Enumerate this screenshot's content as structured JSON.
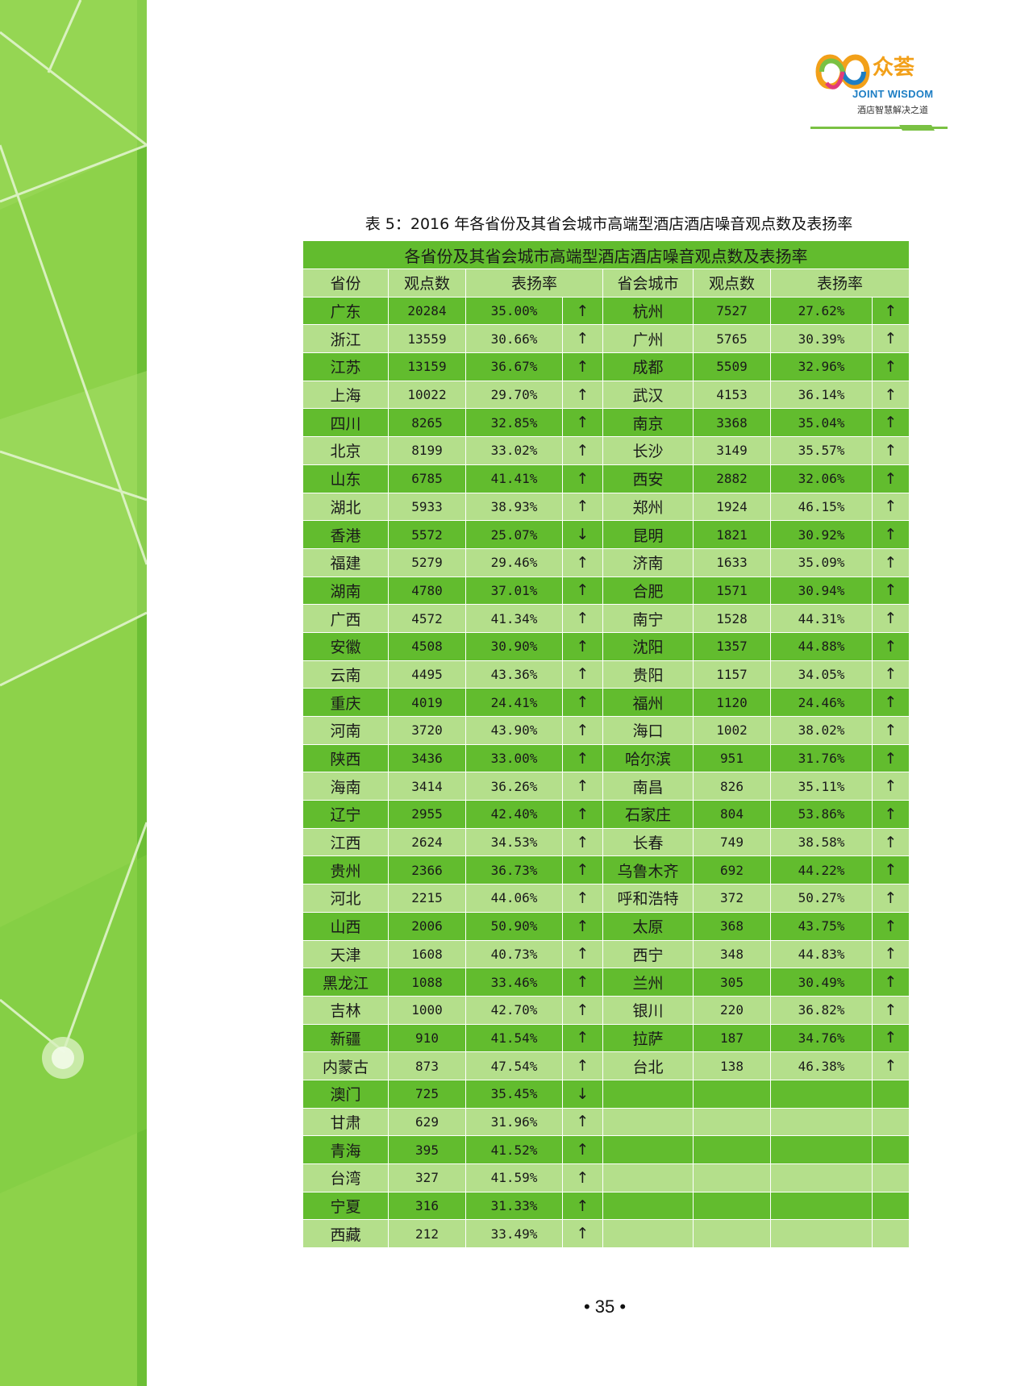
{
  "logo": {
    "brand_cn": "众荟",
    "brand_en": "JOINT WISDOM",
    "tagline": "酒店智慧解决之道"
  },
  "table": {
    "caption": "表 5：2016 年各省份及其省会城市高端型酒店酒店噪音观点数及表扬率",
    "title": "各省份及其省会城市高端型酒店酒店噪音观点数及表扬率",
    "headers": {
      "province": "省份",
      "province_count": "观点数",
      "province_rate": "表扬率",
      "city": "省会城市",
      "city_count": "观点数",
      "city_rate": "表扬率"
    },
    "rows": [
      {
        "province": "广东",
        "p_count": "20284",
        "p_rate": "35.00%",
        "p_arrow": "↑",
        "city": "杭州",
        "c_count": "7527",
        "c_rate": "27.62%",
        "c_arrow": "↑"
      },
      {
        "province": "浙江",
        "p_count": "13559",
        "p_rate": "30.66%",
        "p_arrow": "↑",
        "city": "广州",
        "c_count": "5765",
        "c_rate": "30.39%",
        "c_arrow": "↑"
      },
      {
        "province": "江苏",
        "p_count": "13159",
        "p_rate": "36.67%",
        "p_arrow": "↑",
        "city": "成都",
        "c_count": "5509",
        "c_rate": "32.96%",
        "c_arrow": "↑"
      },
      {
        "province": "上海",
        "p_count": "10022",
        "p_rate": "29.70%",
        "p_arrow": "↑",
        "city": "武汉",
        "c_count": "4153",
        "c_rate": "36.14%",
        "c_arrow": "↑"
      },
      {
        "province": "四川",
        "p_count": "8265",
        "p_rate": "32.85%",
        "p_arrow": "↑",
        "city": "南京",
        "c_count": "3368",
        "c_rate": "35.04%",
        "c_arrow": "↑"
      },
      {
        "province": "北京",
        "p_count": "8199",
        "p_rate": "33.02%",
        "p_arrow": "↑",
        "city": "长沙",
        "c_count": "3149",
        "c_rate": "35.57%",
        "c_arrow": "↑"
      },
      {
        "province": "山东",
        "p_count": "6785",
        "p_rate": "41.41%",
        "p_arrow": "↑",
        "city": "西安",
        "c_count": "2882",
        "c_rate": "32.06%",
        "c_arrow": "↑"
      },
      {
        "province": "湖北",
        "p_count": "5933",
        "p_rate": "38.93%",
        "p_arrow": "↑",
        "city": "郑州",
        "c_count": "1924",
        "c_rate": "46.15%",
        "c_arrow": "↑"
      },
      {
        "province": "香港",
        "p_count": "5572",
        "p_rate": "25.07%",
        "p_arrow": "↓",
        "city": "昆明",
        "c_count": "1821",
        "c_rate": "30.92%",
        "c_arrow": "↑"
      },
      {
        "province": "福建",
        "p_count": "5279",
        "p_rate": "29.46%",
        "p_arrow": "↑",
        "city": "济南",
        "c_count": "1633",
        "c_rate": "35.09%",
        "c_arrow": "↑"
      },
      {
        "province": "湖南",
        "p_count": "4780",
        "p_rate": "37.01%",
        "p_arrow": "↑",
        "city": "合肥",
        "c_count": "1571",
        "c_rate": "30.94%",
        "c_arrow": "↑"
      },
      {
        "province": "广西",
        "p_count": "4572",
        "p_rate": "41.34%",
        "p_arrow": "↑",
        "city": "南宁",
        "c_count": "1528",
        "c_rate": "44.31%",
        "c_arrow": "↑"
      },
      {
        "province": "安徽",
        "p_count": "4508",
        "p_rate": "30.90%",
        "p_arrow": "↑",
        "city": "沈阳",
        "c_count": "1357",
        "c_rate": "44.88%",
        "c_arrow": "↑"
      },
      {
        "province": "云南",
        "p_count": "4495",
        "p_rate": "43.36%",
        "p_arrow": "↑",
        "city": "贵阳",
        "c_count": "1157",
        "c_rate": "34.05%",
        "c_arrow": "↑"
      },
      {
        "province": "重庆",
        "p_count": "4019",
        "p_rate": "24.41%",
        "p_arrow": "↑",
        "city": "福州",
        "c_count": "1120",
        "c_rate": "24.46%",
        "c_arrow": "↑"
      },
      {
        "province": "河南",
        "p_count": "3720",
        "p_rate": "43.90%",
        "p_arrow": "↑",
        "city": "海口",
        "c_count": "1002",
        "c_rate": "38.02%",
        "c_arrow": "↑"
      },
      {
        "province": "陕西",
        "p_count": "3436",
        "p_rate": "33.00%",
        "p_arrow": "↑",
        "city": "哈尔滨",
        "c_count": "951",
        "c_rate": "31.76%",
        "c_arrow": "↑"
      },
      {
        "province": "海南",
        "p_count": "3414",
        "p_rate": "36.26%",
        "p_arrow": "↑",
        "city": "南昌",
        "c_count": "826",
        "c_rate": "35.11%",
        "c_arrow": "↑"
      },
      {
        "province": "辽宁",
        "p_count": "2955",
        "p_rate": "42.40%",
        "p_arrow": "↑",
        "city": "石家庄",
        "c_count": "804",
        "c_rate": "53.86%",
        "c_arrow": "↑"
      },
      {
        "province": "江西",
        "p_count": "2624",
        "p_rate": "34.53%",
        "p_arrow": "↑",
        "city": "长春",
        "c_count": "749",
        "c_rate": "38.58%",
        "c_arrow": "↑"
      },
      {
        "province": "贵州",
        "p_count": "2366",
        "p_rate": "36.73%",
        "p_arrow": "↑",
        "city": "乌鲁木齐",
        "c_count": "692",
        "c_rate": "44.22%",
        "c_arrow": "↑"
      },
      {
        "province": "河北",
        "p_count": "2215",
        "p_rate": "44.06%",
        "p_arrow": "↑",
        "city": "呼和浩特",
        "c_count": "372",
        "c_rate": "50.27%",
        "c_arrow": "↑"
      },
      {
        "province": "山西",
        "p_count": "2006",
        "p_rate": "50.90%",
        "p_arrow": "↑",
        "city": "太原",
        "c_count": "368",
        "c_rate": "43.75%",
        "c_arrow": "↑"
      },
      {
        "province": "天津",
        "p_count": "1608",
        "p_rate": "40.73%",
        "p_arrow": "↑",
        "city": "西宁",
        "c_count": "348",
        "c_rate": "44.83%",
        "c_arrow": "↑"
      },
      {
        "province": "黑龙江",
        "p_count": "1088",
        "p_rate": "33.46%",
        "p_arrow": "↑",
        "city": "兰州",
        "c_count": "305",
        "c_rate": "30.49%",
        "c_arrow": "↑"
      },
      {
        "province": "吉林",
        "p_count": "1000",
        "p_rate": "42.70%",
        "p_arrow": "↑",
        "city": "银川",
        "c_count": "220",
        "c_rate": "36.82%",
        "c_arrow": "↑"
      },
      {
        "province": "新疆",
        "p_count": "910",
        "p_rate": "41.54%",
        "p_arrow": "↑",
        "city": "拉萨",
        "c_count": "187",
        "c_rate": "34.76%",
        "c_arrow": "↑"
      },
      {
        "province": "内蒙古",
        "p_count": "873",
        "p_rate": "47.54%",
        "p_arrow": "↑",
        "city": "台北",
        "c_count": "138",
        "c_rate": "46.38%",
        "c_arrow": "↑"
      },
      {
        "province": "澳门",
        "p_count": "725",
        "p_rate": "35.45%",
        "p_arrow": "↓",
        "city": "",
        "c_count": "",
        "c_rate": "",
        "c_arrow": ""
      },
      {
        "province": "甘肃",
        "p_count": "629",
        "p_rate": "31.96%",
        "p_arrow": "↑",
        "city": "",
        "c_count": "",
        "c_rate": "",
        "c_arrow": ""
      },
      {
        "province": "青海",
        "p_count": "395",
        "p_rate": "41.52%",
        "p_arrow": "↑",
        "city": "",
        "c_count": "",
        "c_rate": "",
        "c_arrow": ""
      },
      {
        "province": "台湾",
        "p_count": "327",
        "p_rate": "41.59%",
        "p_arrow": "↑",
        "city": "",
        "c_count": "",
        "c_rate": "",
        "c_arrow": ""
      },
      {
        "province": "宁夏",
        "p_count": "316",
        "p_rate": "31.33%",
        "p_arrow": "↑",
        "city": "",
        "c_count": "",
        "c_rate": "",
        "c_arrow": ""
      },
      {
        "province": "西藏",
        "p_count": "212",
        "p_rate": "33.49%",
        "p_arrow": "↑",
        "city": "",
        "c_count": "",
        "c_rate": "",
        "c_arrow": ""
      }
    ]
  },
  "page": {
    "number": "• 35 •"
  },
  "colors": {
    "sidebar": "#8dd24a",
    "row_dark": "#62bc2e",
    "row_light": "#b4df8b",
    "logo_orange": "#f2a019",
    "logo_blue": "#1d7ec4"
  }
}
